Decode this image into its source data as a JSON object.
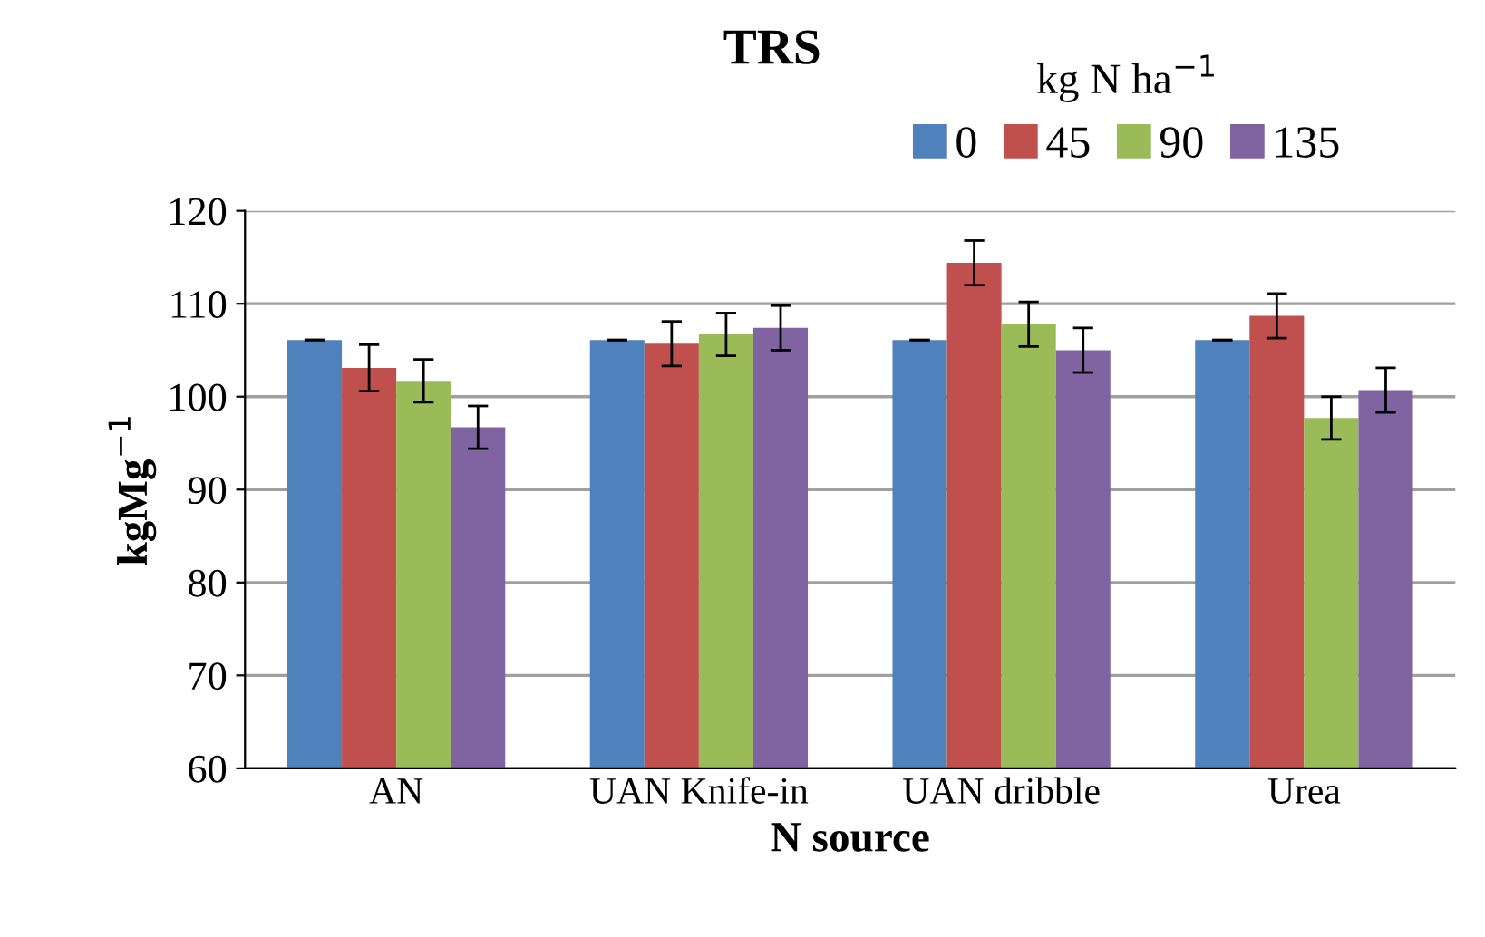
{
  "chart_data": {
    "type": "bar",
    "title": "TRS",
    "legend_title": "kg N ha$^{−1}$",
    "xlabel": "N source",
    "ylabel": "kgMg$^{−1}$",
    "categories": [
      "AN",
      "UAN Knife-in",
      "UAN dribble",
      "Urea"
    ],
    "ylim": [
      60,
      120
    ],
    "yticks": [
      60,
      70,
      80,
      90,
      100,
      110,
      120
    ],
    "grid": "y",
    "legend": "top right",
    "series": [
      {
        "name": "0",
        "color": "#4f81bd",
        "values": [
          106.1,
          106.1,
          106.1,
          106.1
        ],
        "errors": [
          0,
          0,
          0,
          0
        ]
      },
      {
        "name": "45",
        "color": "#c0504d",
        "values": [
          103.1,
          105.7,
          114.4,
          108.7
        ],
        "errors": [
          2.5,
          2.4,
          2.4,
          2.4
        ]
      },
      {
        "name": "90",
        "color": "#9bbb59",
        "values": [
          101.7,
          106.7,
          107.8,
          97.7
        ],
        "errors": [
          2.3,
          2.3,
          2.4,
          2.3
        ]
      },
      {
        "name": "135",
        "color": "#8064a2",
        "values": [
          96.7,
          107.4,
          105.0,
          100.7
        ],
        "errors": [
          2.3,
          2.4,
          2.4,
          2.4
        ]
      }
    ]
  }
}
